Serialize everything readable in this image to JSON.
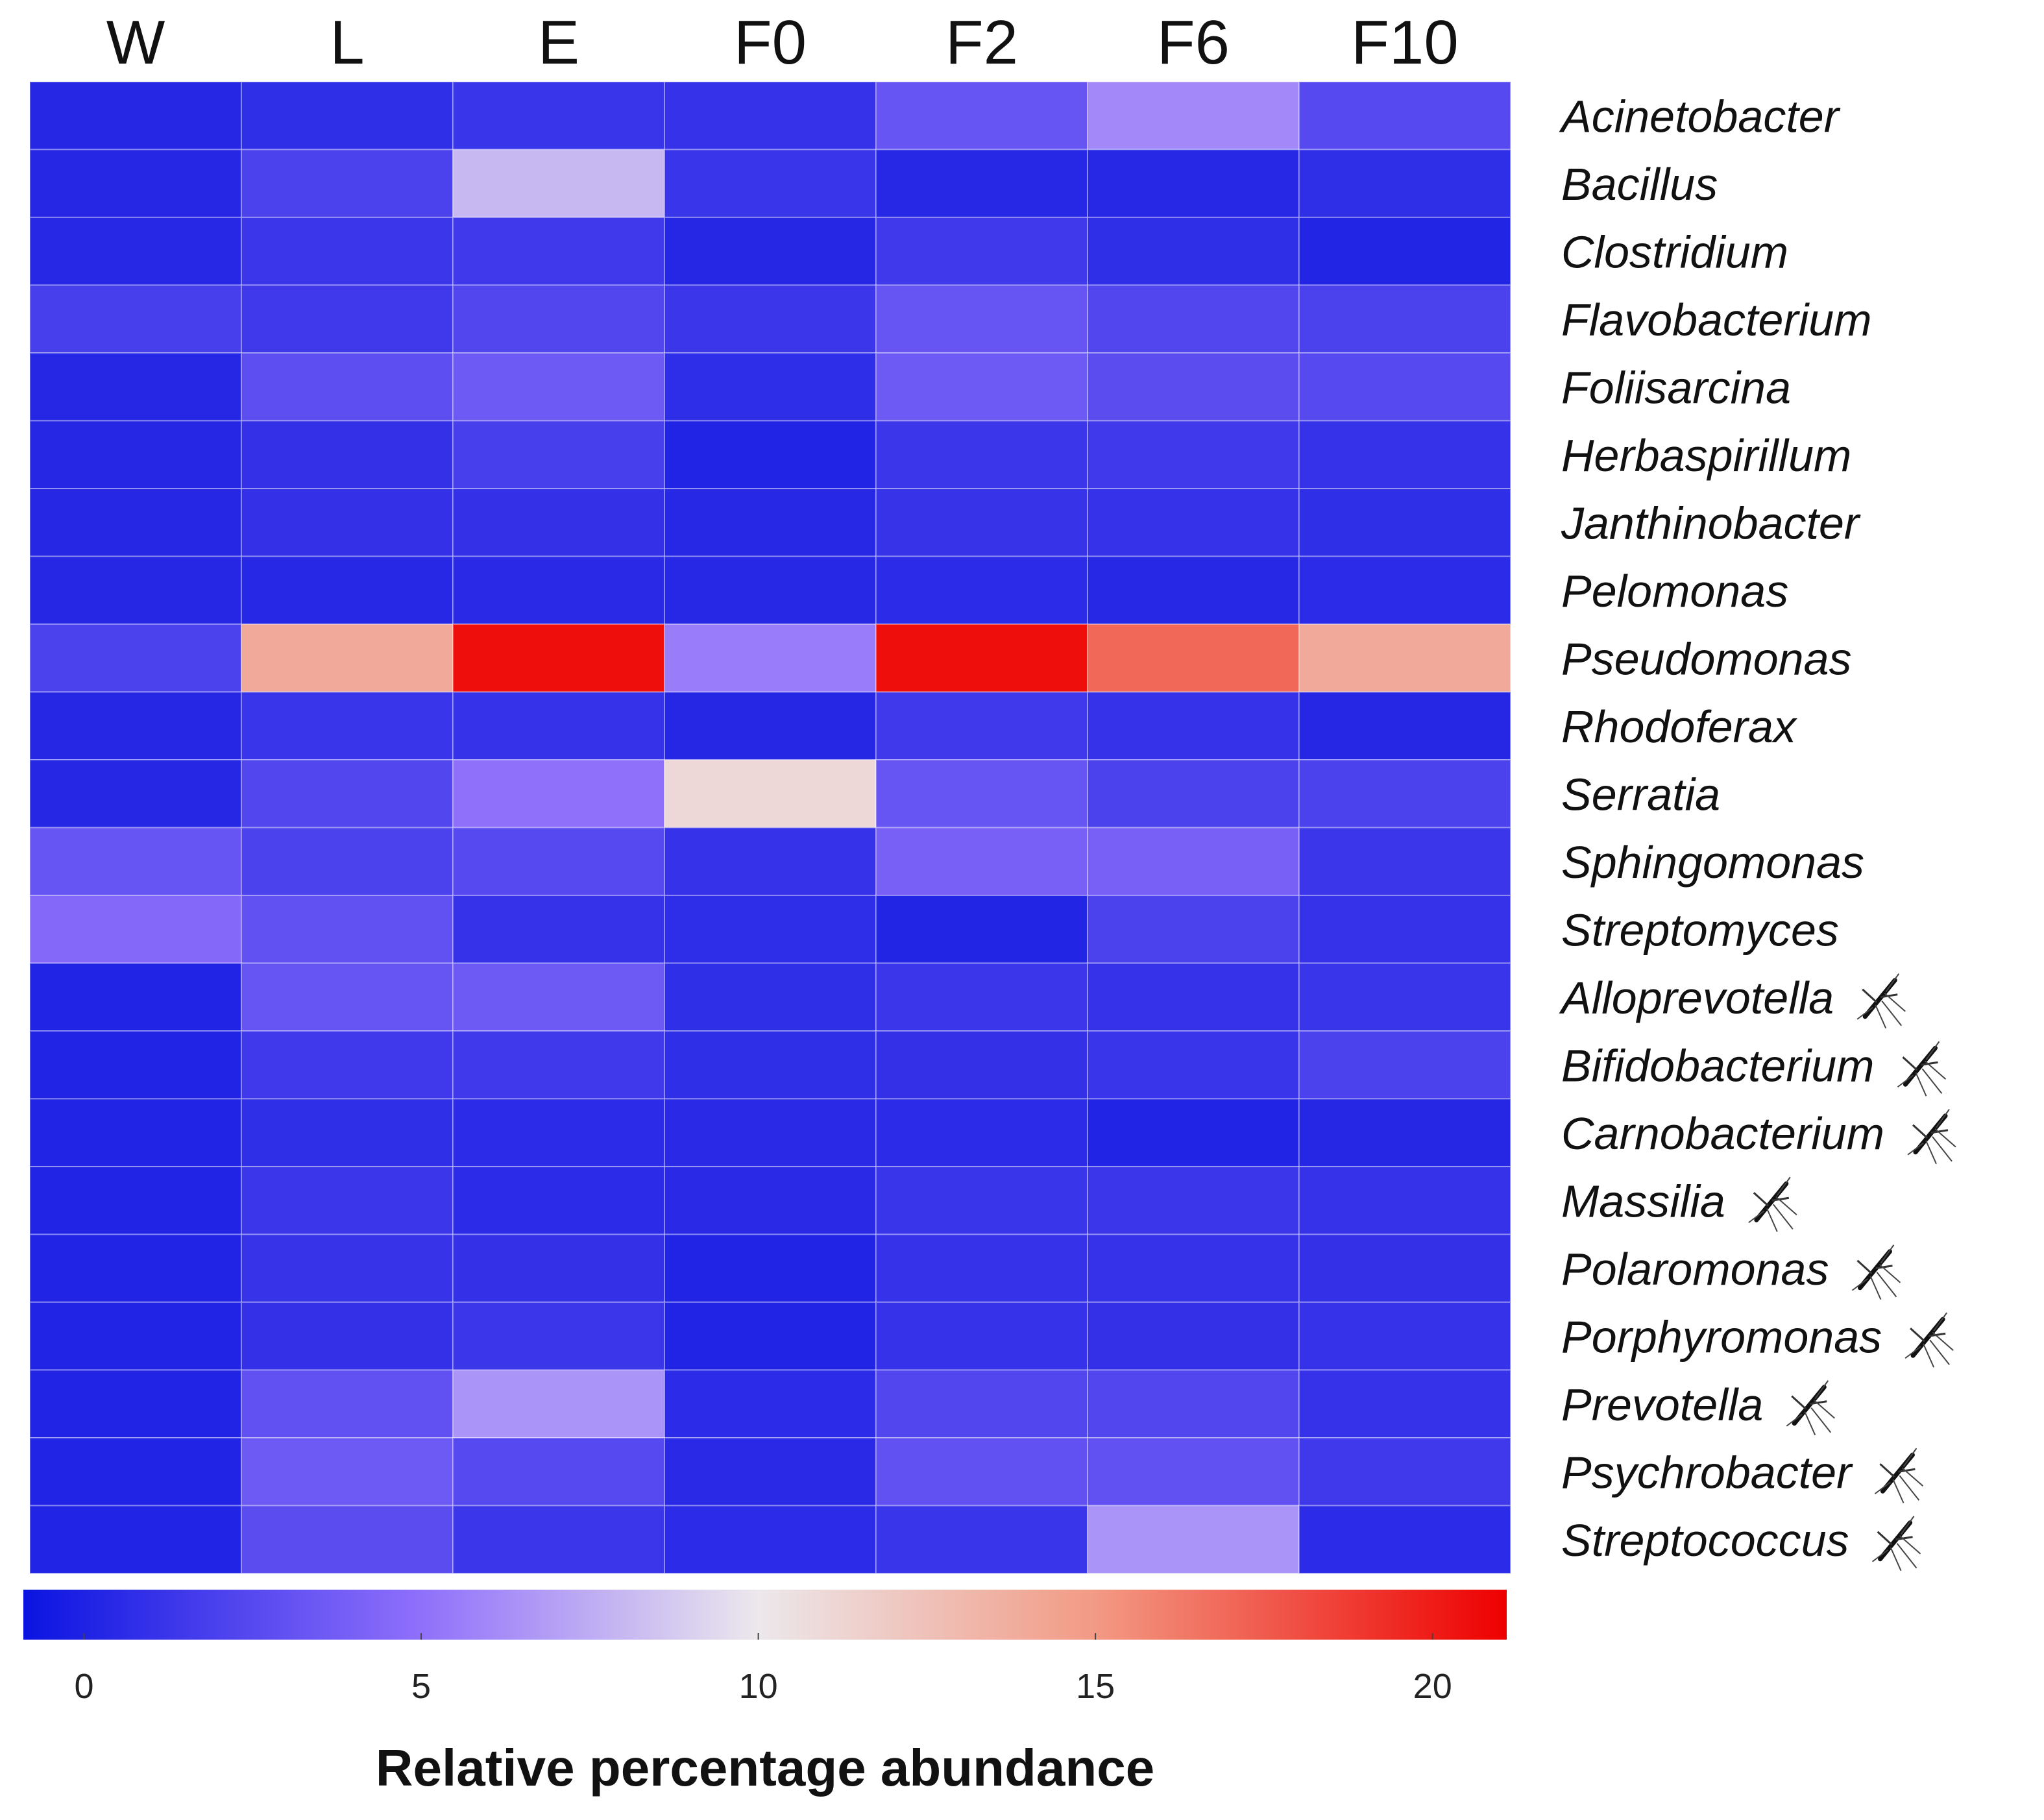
{
  "chart_data": {
    "type": "heatmap",
    "title": "",
    "columns": [
      "W",
      "L",
      "E",
      "F0",
      "F2",
      "F6",
      "F10"
    ],
    "rows": [
      "Acinetobacter",
      "Bacillus",
      "Clostridium",
      "Flavobacterium",
      "Foliisarcina",
      "Herbaspirillum",
      "Janthinobacter",
      "Pelomonas",
      "Pseudomonas",
      "Rhodoferax",
      "Serratia",
      "Sphingomonas",
      "Streptomyces",
      "Alloprevotella",
      "Bifidobacterium",
      "Carnobacterium",
      "Massilia",
      "Polaromonas",
      "Porphyromonas",
      "Prevotella",
      "Psychrobacter",
      "Streptococcus"
    ],
    "marked_rows": [
      "Alloprevotella",
      "Bifidobacterium",
      "Carnobacterium",
      "Massilia",
      "Polaromonas",
      "Porphyromonas",
      "Prevotella",
      "Psychrobacter",
      "Streptococcus"
    ],
    "marker_icon": "mosquito-icon",
    "values": [
      [
        0.3,
        0.8,
        1.2,
        1.0,
        3.2,
        6.0,
        2.5
      ],
      [
        0.3,
        2.0,
        8.0,
        1.2,
        0.4,
        0.4,
        0.8
      ],
      [
        0.4,
        1.3,
        1.5,
        0.3,
        1.5,
        0.8,
        0.2
      ],
      [
        1.8,
        1.5,
        2.3,
        1.3,
        3.2,
        2.3,
        2.0
      ],
      [
        0.3,
        2.8,
        3.5,
        0.7,
        3.5,
        2.7,
        2.5
      ],
      [
        0.3,
        0.9,
        1.8,
        0.1,
        1.3,
        1.5,
        1.0
      ],
      [
        0.3,
        0.9,
        0.9,
        0.4,
        1.1,
        1.0,
        0.8
      ],
      [
        0.3,
        0.4,
        0.5,
        0.4,
        0.6,
        0.4,
        0.6
      ],
      [
        2.0,
        14.0,
        20.5,
        5.5,
        20.5,
        17.0,
        14.0
      ],
      [
        0.3,
        1.2,
        1.0,
        0.3,
        1.5,
        1.0,
        0.3
      ],
      [
        0.3,
        2.3,
        5.0,
        11.0,
        3.2,
        2.0,
        2.0
      ],
      [
        3.2,
        2.0,
        2.5,
        1.0,
        4.0,
        4.0,
        1.3
      ],
      [
        4.5,
        3.0,
        1.0,
        0.7,
        0.2,
        2.0,
        1.0
      ],
      [
        0.1,
        3.2,
        3.5,
        0.8,
        1.3,
        1.0,
        1.2
      ],
      [
        0.1,
        1.5,
        1.5,
        0.8,
        0.9,
        1.2,
        2.0
      ],
      [
        0.1,
        0.8,
        0.6,
        0.5,
        0.6,
        0.1,
        0.3
      ],
      [
        0.1,
        1.3,
        0.6,
        0.5,
        1.2,
        1.3,
        1.0
      ],
      [
        0.1,
        1.1,
        0.9,
        0.1,
        1.0,
        1.0,
        0.9
      ],
      [
        0.1,
        0.9,
        1.3,
        0.1,
        1.0,
        0.9,
        1.0
      ],
      [
        0.1,
        3.0,
        6.5,
        0.6,
        2.3,
        2.3,
        1.0
      ],
      [
        0.1,
        3.5,
        2.5,
        0.5,
        3.0,
        3.0,
        1.5
      ],
      [
        0.1,
        2.7,
        1.3,
        0.6,
        1.2,
        6.5,
        0.6
      ]
    ],
    "colorbar": {
      "min": -0.9,
      "max": 21.1,
      "ticks": [
        0,
        5,
        10,
        15,
        20
      ],
      "tick_labels": [
        "0",
        "5",
        "10",
        "15",
        "20"
      ],
      "stops": [
        {
          "value": -0.9,
          "color": "#0a14e0"
        },
        {
          "value": 5,
          "color": "#8f70fb"
        },
        {
          "value": 10,
          "color": "#ece8ec"
        },
        {
          "value": 15,
          "color": "#f29a84"
        },
        {
          "value": 21.1,
          "color": "#ee0000"
        }
      ],
      "label": "Relative percentage abundance"
    }
  }
}
